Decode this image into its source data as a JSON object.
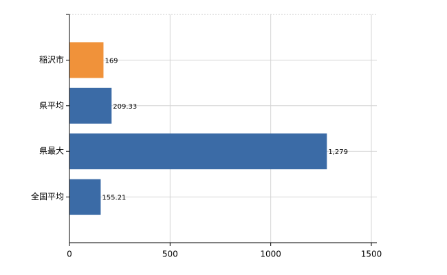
{
  "chart_data": {
    "type": "bar",
    "orientation": "horizontal",
    "categories": [
      "稲沢市",
      "県平均",
      "県最大",
      "全国平均"
    ],
    "values": [
      169,
      209.33,
      1279,
      155.21
    ],
    "value_labels": [
      "169",
      "209.33",
      "1,279",
      "155.21"
    ],
    "colors": [
      "#f0923a",
      "#3b6ba6",
      "#3b6ba6",
      "#3b6ba6"
    ],
    "xlim": [
      0,
      1500
    ],
    "xticks": [
      0,
      500,
      1000,
      1500
    ],
    "grid": true
  }
}
